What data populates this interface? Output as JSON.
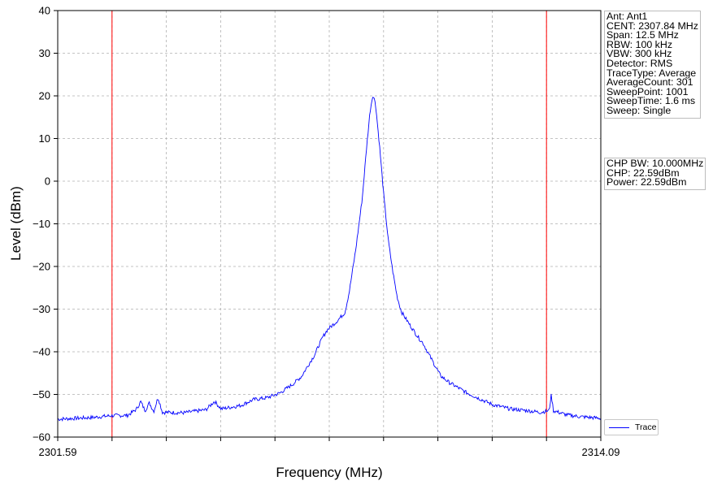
{
  "chart_data": {
    "type": "line",
    "xlabel": "Frequency (MHz)",
    "ylabel": "Level (dBm)",
    "xlim": [
      2301.59,
      2314.09
    ],
    "ylim": [
      -60,
      40
    ],
    "x_tick_labels": [
      "2301.59",
      "2314.09"
    ],
    "y_ticks": [
      40,
      30,
      20,
      10,
      0,
      -10,
      -20,
      -30,
      -40,
      -50,
      -60
    ],
    "y_tick_labels": [
      "40",
      "30",
      "20",
      "10",
      "0",
      "−10",
      "−20",
      "−30",
      "−40",
      "−50",
      "−60"
    ],
    "grid": true,
    "legend_position": "lower-right",
    "series": [
      {
        "name": "Trace",
        "color": "#0000ff",
        "points": [
          [
            2301.59,
            -55.8
          ],
          [
            2302.0,
            -55.6
          ],
          [
            2302.4,
            -55.4
          ],
          [
            2302.8,
            -55.0
          ],
          [
            2303.2,
            -54.9
          ],
          [
            2303.4,
            -53.5
          ],
          [
            2303.5,
            -51.7
          ],
          [
            2303.6,
            -53.8
          ],
          [
            2303.7,
            -52.0
          ],
          [
            2303.8,
            -54.0
          ],
          [
            2303.9,
            -50.7
          ],
          [
            2304.0,
            -54.2
          ],
          [
            2304.5,
            -54.3
          ],
          [
            2305.0,
            -53.6
          ],
          [
            2305.2,
            -51.6
          ],
          [
            2305.35,
            -53.4
          ],
          [
            2305.8,
            -52.6
          ],
          [
            2306.1,
            -51.2
          ],
          [
            2306.4,
            -50.8
          ],
          [
            2306.7,
            -49.7
          ],
          [
            2307.0,
            -47.6
          ],
          [
            2307.2,
            -45.8
          ],
          [
            2307.4,
            -42.4
          ],
          [
            2307.5,
            -40.8
          ],
          [
            2307.6,
            -38.5
          ],
          [
            2307.7,
            -36.4
          ],
          [
            2307.8,
            -34.8
          ],
          [
            2308.0,
            -33.0
          ],
          [
            2308.2,
            -30.8
          ],
          [
            2308.3,
            -26.0
          ],
          [
            2308.45,
            -16.0
          ],
          [
            2308.6,
            -4.0
          ],
          [
            2308.7,
            8.0
          ],
          [
            2308.78,
            16.5
          ],
          [
            2308.84,
            20.1
          ],
          [
            2308.9,
            18.6
          ],
          [
            2309.0,
            8.0
          ],
          [
            2309.1,
            -4.0
          ],
          [
            2309.2,
            -14.0
          ],
          [
            2309.3,
            -21.0
          ],
          [
            2309.4,
            -27.0
          ],
          [
            2309.5,
            -30.6
          ],
          [
            2309.7,
            -33.8
          ],
          [
            2309.9,
            -36.8
          ],
          [
            2310.0,
            -38.0
          ],
          [
            2310.1,
            -40.0
          ],
          [
            2310.25,
            -42.8
          ],
          [
            2310.4,
            -45.6
          ],
          [
            2310.6,
            -47.2
          ],
          [
            2310.8,
            -48.4
          ],
          [
            2311.0,
            -49.6
          ],
          [
            2311.3,
            -51.0
          ],
          [
            2311.6,
            -52.4
          ],
          [
            2312.0,
            -53.4
          ],
          [
            2312.4,
            -53.8
          ],
          [
            2312.7,
            -54.2
          ],
          [
            2312.9,
            -53.8
          ],
          [
            2312.95,
            -50.1
          ],
          [
            2313.0,
            -53.8
          ],
          [
            2313.3,
            -54.8
          ],
          [
            2313.6,
            -55.2
          ],
          [
            2314.09,
            -55.6
          ]
        ]
      }
    ],
    "markers": {
      "color": "#ff0000",
      "lines": [
        2302.84,
        2312.84
      ]
    }
  },
  "info_box": {
    "lines": [
      "Ant: Ant1",
      "CENT: 2307.84 MHz",
      "Span: 12.5 MHz",
      "RBW: 100 kHz",
      "VBW: 300 kHz",
      "Detector: RMS",
      "TraceType: Average",
      "AverageCount: 301",
      "SweepPoint: 1001",
      "SweepTime: 1.6 ms",
      "Sweep: Single"
    ]
  },
  "power_box": {
    "lines": [
      "CHP BW: 10.000MHz",
      "CHP: 22.59dBm",
      "Power: 22.59dBm"
    ]
  },
  "legend": {
    "label": "Trace"
  }
}
